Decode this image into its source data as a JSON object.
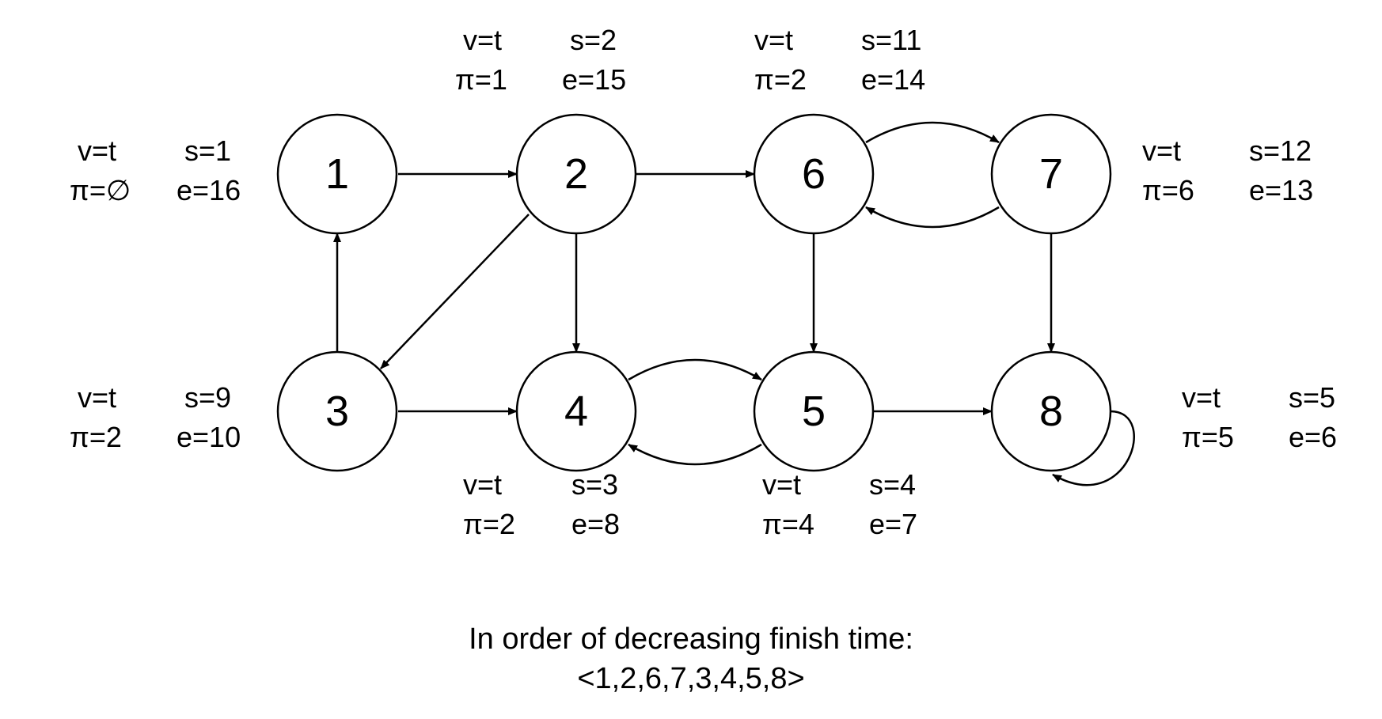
{
  "nodes": [
    {
      "id": "1",
      "label": "1",
      "v": "v=t",
      "s": "s=1",
      "pi": "π=∅",
      "e": "e=16"
    },
    {
      "id": "2",
      "label": "2",
      "v": "v=t",
      "s": "s=2",
      "pi": "π=1",
      "e": "e=15"
    },
    {
      "id": "3",
      "label": "3",
      "v": "v=t",
      "s": "s=9",
      "pi": "π=2",
      "e": "e=10"
    },
    {
      "id": "4",
      "label": "4",
      "v": "v=t",
      "s": "s=3",
      "pi": "π=2",
      "e": "e=8"
    },
    {
      "id": "5",
      "label": "5",
      "v": "v=t",
      "s": "s=4",
      "pi": "π=4",
      "e": "e=7"
    },
    {
      "id": "6",
      "label": "6",
      "v": "v=t",
      "s": "s=11",
      "pi": "π=2",
      "e": "e=14"
    },
    {
      "id": "7",
      "label": "7",
      "v": "v=t",
      "s": "s=12",
      "pi": "π=6",
      "e": "e=13"
    },
    {
      "id": "8",
      "label": "8",
      "v": "v=t",
      "s": "s=5",
      "pi": "π=5",
      "e": "e=6"
    }
  ],
  "edges": [
    {
      "from": "1",
      "to": "2"
    },
    {
      "from": "2",
      "to": "6"
    },
    {
      "from": "6",
      "to": "7"
    },
    {
      "from": "7",
      "to": "6"
    },
    {
      "from": "3",
      "to": "1"
    },
    {
      "from": "2",
      "to": "3"
    },
    {
      "from": "2",
      "to": "4"
    },
    {
      "from": "6",
      "to": "5"
    },
    {
      "from": "7",
      "to": "8"
    },
    {
      "from": "3",
      "to": "4"
    },
    {
      "from": "4",
      "to": "5"
    },
    {
      "from": "5",
      "to": "4"
    },
    {
      "from": "5",
      "to": "8"
    },
    {
      "from": "8",
      "to": "8"
    }
  ],
  "caption": {
    "line1": "In order of decreasing finish time:",
    "line2": "<1,2,6,7,3,4,5,8>"
  }
}
